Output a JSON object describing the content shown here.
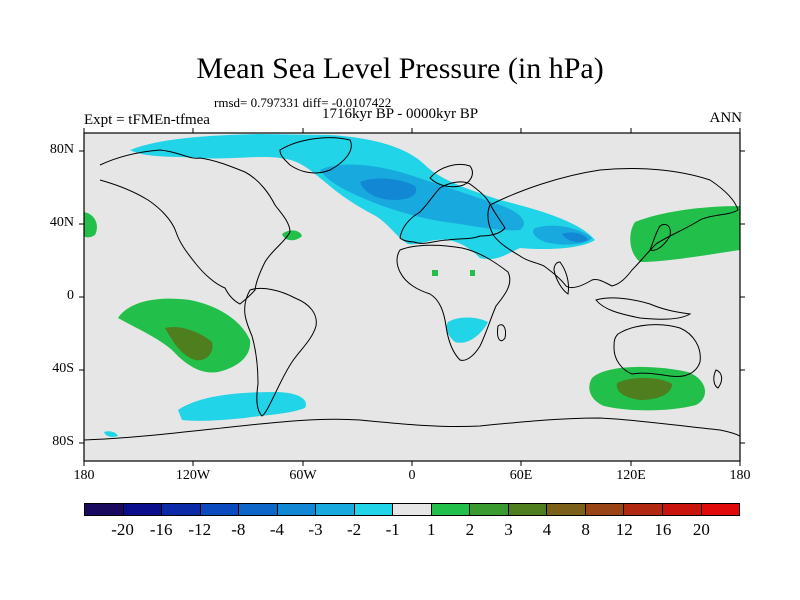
{
  "title": "Mean Sea Level Pressure (in hPa)",
  "stats": "rmsd= 0.797331  diff= -0.0107422",
  "period": "1716kyr BP - 0000kyr BP",
  "expt": "Expt = tFMEn-tfmea",
  "season": "ANN",
  "lat_labels": [
    "80N",
    "40N",
    "0",
    "40S",
    "80S"
  ],
  "lon_labels": [
    "180",
    "120W",
    "60W",
    "0",
    "60E",
    "120E",
    "180"
  ],
  "colorbar": {
    "labels": [
      "-20",
      "-16",
      "-12",
      "-8",
      "-4",
      "-3",
      "-2",
      "-1",
      "1",
      "2",
      "3",
      "4",
      "8",
      "12",
      "16",
      "20"
    ],
    "colors": [
      "#1a0a5e",
      "#0a0d8c",
      "#0a2aa8",
      "#0a4abe",
      "#0e66c8",
      "#1288d4",
      "#18aade",
      "#22d4e8",
      "#e6e6e6",
      "#22c04a",
      "#3a9a30",
      "#4e7e1e",
      "#7a6018",
      "#984414",
      "#b02810",
      "#c8140c",
      "#e00a0a"
    ]
  },
  "colors": {
    "background_land_ocean": "#e6e6e6",
    "cyan": "#22d4e8",
    "light_blue": "#18aade",
    "blue": "#1288d4",
    "green": "#22c04a",
    "olive": "#4e7e1e"
  }
}
